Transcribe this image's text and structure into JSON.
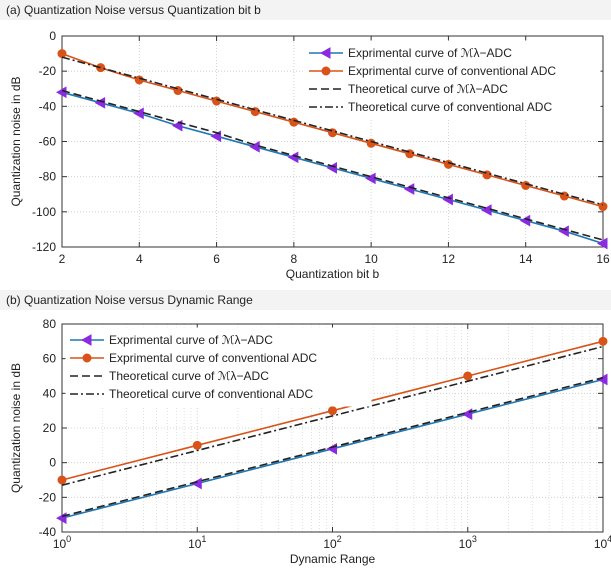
{
  "chart_data": [
    {
      "type": "line",
      "panel_title": "(a) Quantization Noise versus Quantization bit b",
      "xlabel": "Quantization bit b",
      "ylabel": "Quantization noise in dB",
      "xlim": [
        2,
        16
      ],
      "ylim": [
        -120,
        0
      ],
      "xticks": [
        2,
        4,
        6,
        8,
        10,
        12,
        14,
        16
      ],
      "yticks": [
        0,
        -20,
        -40,
        -60,
        -80,
        -100,
        -120
      ],
      "grid": true,
      "legend_position": "top-right",
      "x": [
        2,
        3,
        4,
        5,
        6,
        7,
        8,
        9,
        10,
        11,
        12,
        13,
        14,
        15,
        16
      ],
      "series": [
        {
          "name": "Exprimental curve of ℳλ−ADC",
          "style": "solid",
          "marker": "triangle-left",
          "color": "#1f77b4",
          "values": [
            -32,
            -38,
            -44,
            -51,
            -57,
            -63,
            -69,
            -75,
            -81,
            -87,
            -93,
            -99,
            -105,
            -111,
            -118
          ]
        },
        {
          "name": "Exprimental curve of conventional ADC",
          "style": "solid",
          "marker": "circle",
          "color": "#d95319",
          "values": [
            -10,
            -18,
            -25,
            -31,
            -37,
            -43,
            -49,
            -55,
            -61,
            -67,
            -73,
            -79,
            -85,
            -91,
            -97
          ]
        },
        {
          "name": "Theoretical curve of ℳλ−ADC",
          "style": "dashed",
          "marker": "none",
          "color": "#222222",
          "values": [
            -31,
            -37,
            -43,
            -49,
            -55,
            -62,
            -68,
            -74,
            -80,
            -86,
            -92,
            -98,
            -104,
            -110,
            -116
          ]
        },
        {
          "name": "Theoretical curve of conventional ADC",
          "style": "dashdot",
          "marker": "none",
          "color": "#222222",
          "values": [
            -12,
            -18,
            -24,
            -30,
            -36,
            -42,
            -48,
            -54,
            -60,
            -66,
            -72,
            -78,
            -84,
            -90,
            -96
          ]
        }
      ]
    },
    {
      "type": "line",
      "panel_title": "(b) Quantization Noise versus Dynamic Range",
      "xlabel": "Dynamic Range",
      "ylabel": "Quantization noise in dB",
      "xscale": "log",
      "xlim": [
        1,
        10000
      ],
      "ylim": [
        -40,
        80
      ],
      "xticks": [
        1,
        10,
        100,
        1000,
        10000
      ],
      "xtick_labels": [
        "0",
        "1",
        "2",
        "3",
        "4"
      ],
      "yticks": [
        80,
        60,
        40,
        20,
        0,
        -20,
        -40
      ],
      "grid": true,
      "legend_position": "top-left",
      "x": [
        1,
        10,
        100,
        1000,
        10000
      ],
      "series": [
        {
          "name": "Exprimental curve of ℳλ−ADC",
          "style": "solid",
          "marker": "triangle-left",
          "color": "#1f77b4",
          "values": [
            -32,
            -12,
            8,
            28,
            48
          ]
        },
        {
          "name": "Exprimental curve of conventional ADC",
          "style": "solid",
          "marker": "circle",
          "color": "#d95319",
          "values": [
            -10,
            10,
            30,
            50,
            70
          ]
        },
        {
          "name": "Theoretical curve of ℳλ−ADC",
          "style": "dashed",
          "marker": "none",
          "color": "#222222",
          "values": [
            -31,
            -11,
            9,
            29,
            49
          ]
        },
        {
          "name": "Theoretical curve of conventional ADC",
          "style": "dashdot",
          "marker": "none",
          "color": "#222222",
          "values": [
            -13,
            7,
            27,
            47,
            67
          ]
        }
      ]
    }
  ]
}
